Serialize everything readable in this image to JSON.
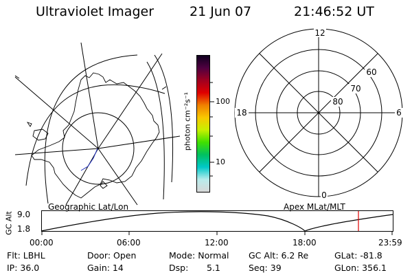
{
  "header": {
    "title": "Ultraviolet Imager",
    "date": "21 Jun 07",
    "time": "21:46:52 UT"
  },
  "left_panel": {
    "label": "Geographic Lat/Lon"
  },
  "color_bar": {
    "unit_label": "photon cm⁻²s⁻¹",
    "tick_labels": [
      "100",
      "10"
    ],
    "stops": [
      "#d8d8d8",
      "#b8ecec",
      "#00c8c8",
      "#00c060",
      "#40e000",
      "#c8f000",
      "#f8c800",
      "#f08000",
      "#e00000",
      "#a00020",
      "#500040",
      "#100020"
    ]
  },
  "right_panel": {
    "label": "Apex MLat/MLT",
    "mlt_labels": {
      "top": "12",
      "left": "18",
      "right": "6",
      "bottom": "0"
    },
    "lat_labels": [
      "60",
      "70",
      "80"
    ]
  },
  "timeline": {
    "y_axis_label": "GC Alt",
    "y_ticks": [
      "9.0",
      "1.8"
    ],
    "x_ticks": [
      "00:00",
      "06:00",
      "12:00",
      "18:00",
      "23:59"
    ],
    "current_marker_color": "#e00000"
  },
  "status": {
    "flt": "Flt: LBHL",
    "ip": "IP: 36.0",
    "door": "Door: Open",
    "gain": "Gain: 14",
    "mode": "Mode: Normal",
    "dsp": "Dsp:",
    "dsp_value": "5.1",
    "gc_alt": "GC Alt: 6.2 Re",
    "seq": "Seq: 39",
    "glat": "GLat: -81.8",
    "glon": "GLon: 356.1"
  }
}
